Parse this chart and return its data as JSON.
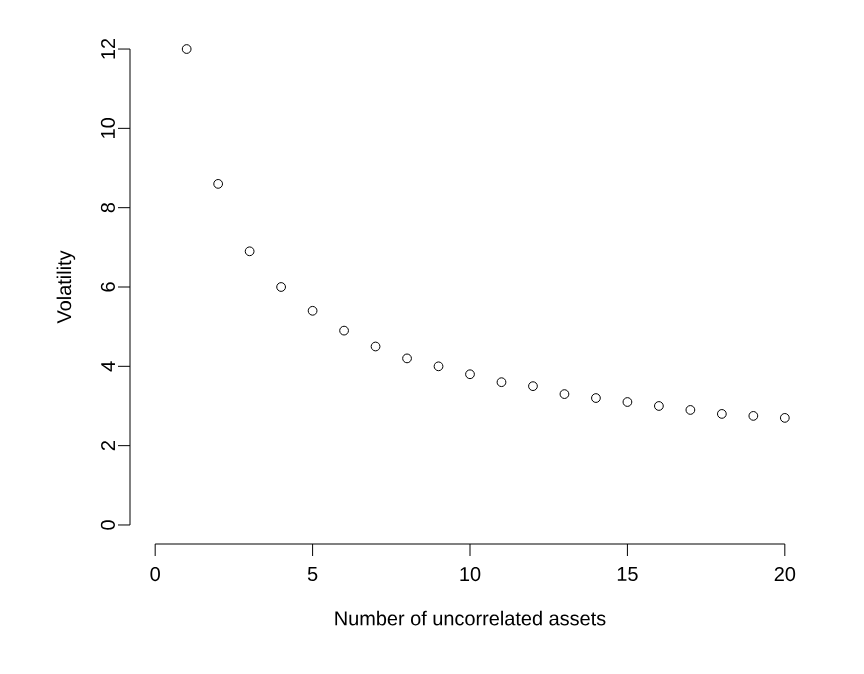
{
  "chart_data": {
    "type": "scatter",
    "xlabel": "Number of uncorrelated assets",
    "ylabel": "Volatility",
    "x": [
      1,
      2,
      3,
      4,
      5,
      6,
      7,
      8,
      9,
      10,
      11,
      12,
      13,
      14,
      15,
      16,
      17,
      18,
      19,
      20
    ],
    "values": [
      12.0,
      8.6,
      6.9,
      6.0,
      5.4,
      4.9,
      4.5,
      4.2,
      4.0,
      3.8,
      3.6,
      3.5,
      3.3,
      3.2,
      3.1,
      3.0,
      2.9,
      2.8,
      2.75,
      2.7
    ],
    "color": "#000000",
    "marker": "circle",
    "xlim": [
      0,
      20
    ],
    "ylim": [
      0,
      12
    ],
    "xticks": [
      0,
      5,
      10,
      15,
      20
    ],
    "yticks": [
      0,
      2,
      4,
      6,
      8,
      10,
      12
    ]
  }
}
